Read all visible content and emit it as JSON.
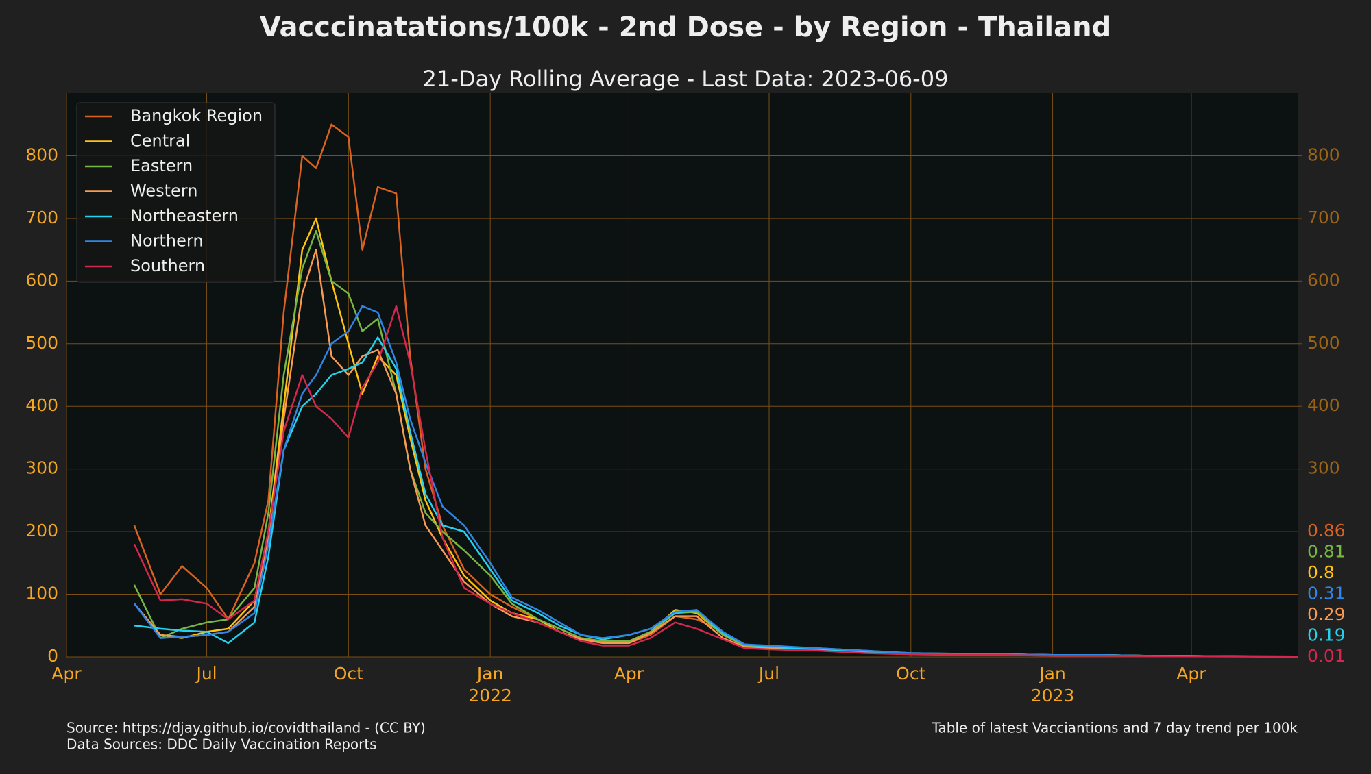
{
  "chart_data": {
    "type": "line",
    "title": "Vacccinatations/100k - 2nd Dose - by Region - Thailand",
    "subtitle": "21-Day Rolling Average - Last Data: 2023-06-09",
    "source": "Source: https://djay.github.io/covidthailand - (CC BY)",
    "data_sources": "Data Sources: DDC Daily Vaccination Reports",
    "table_note": "Table of latest Vacciantions and 7 day trend per 100k",
    "x": [
      "2021-05-15",
      "2021-06-01",
      "2021-06-15",
      "2021-07-01",
      "2021-07-15",
      "2021-08-01",
      "2021-08-10",
      "2021-08-20",
      "2021-09-01",
      "2021-09-10",
      "2021-09-20",
      "2021-10-01",
      "2021-10-10",
      "2021-10-20",
      "2021-11-01",
      "2021-11-10",
      "2021-11-20",
      "2021-12-01",
      "2021-12-15",
      "2022-01-01",
      "2022-01-15",
      "2022-02-01",
      "2022-02-15",
      "2022-03-01",
      "2022-03-15",
      "2022-04-01",
      "2022-04-15",
      "2022-05-01",
      "2022-05-15",
      "2022-06-01",
      "2022-06-15",
      "2022-07-01",
      "2022-08-01",
      "2022-09-01",
      "2022-10-01",
      "2022-11-01",
      "2022-12-01",
      "2023-01-01",
      "2023-02-01",
      "2023-03-01",
      "2023-04-01",
      "2023-05-01",
      "2023-06-09"
    ],
    "xlim": [
      "2021-04-01",
      "2023-06-09"
    ],
    "xticks": [
      {
        "value": "2021-04-01",
        "label": "Apr"
      },
      {
        "value": "2021-07-01",
        "label": "Jul"
      },
      {
        "value": "2021-10-01",
        "label": "Oct"
      },
      {
        "value": "2022-01-01",
        "label": "Jan",
        "year": "2022"
      },
      {
        "value": "2022-04-01",
        "label": "Apr"
      },
      {
        "value": "2022-07-01",
        "label": "Jul"
      },
      {
        "value": "2022-10-01",
        "label": "Oct"
      },
      {
        "value": "2023-01-01",
        "label": "Jan",
        "year": "2023"
      },
      {
        "value": "2023-04-01",
        "label": "Apr"
      }
    ],
    "ylim": [
      0,
      900
    ],
    "yticks": [
      0,
      100,
      200,
      300,
      400,
      500,
      600,
      700,
      800
    ],
    "y2lim": [
      0,
      900
    ],
    "y2ticks": [
      300,
      400,
      500,
      600,
      700,
      800
    ],
    "grid": true,
    "legend": "upper left",
    "series": [
      {
        "name": "Bangkok Region",
        "color": "#d9621f",
        "last_value": 0.86,
        "values": [
          210,
          100,
          145,
          110,
          60,
          150,
          250,
          550,
          800,
          780,
          850,
          830,
          650,
          750,
          740,
          480,
          300,
          210,
          140,
          100,
          80,
          60,
          45,
          30,
          25,
          22,
          35,
          65,
          60,
          40,
          20,
          15,
          12,
          8,
          5,
          4,
          4,
          3,
          3,
          2,
          1.5,
          1,
          0.86
        ]
      },
      {
        "name": "Central",
        "color": "#ffc20e",
        "last_value": 0.8,
        "values": [
          85,
          35,
          30,
          40,
          45,
          90,
          200,
          400,
          650,
          700,
          600,
          500,
          420,
          480,
          450,
          350,
          250,
          190,
          130,
          90,
          70,
          60,
          40,
          28,
          25,
          25,
          40,
          75,
          70,
          35,
          18,
          15,
          12,
          8,
          5,
          4,
          4,
          3,
          3,
          2,
          1.5,
          1,
          0.8
        ]
      },
      {
        "name": "Eastern",
        "color": "#77b843",
        "last_value": 0.81,
        "values": [
          115,
          30,
          45,
          55,
          60,
          110,
          230,
          450,
          620,
          680,
          600,
          580,
          520,
          540,
          420,
          300,
          230,
          200,
          170,
          130,
          85,
          60,
          45,
          30,
          25,
          25,
          40,
          70,
          72,
          35,
          18,
          17,
          14,
          10,
          6,
          5,
          4,
          3,
          3,
          2,
          1.5,
          1,
          0.81
        ]
      },
      {
        "name": "Western",
        "color": "#f79a52",
        "last_value": 0.29,
        "values": [
          85,
          35,
          32,
          35,
          40,
          80,
          190,
          380,
          580,
          650,
          480,
          450,
          480,
          490,
          420,
          300,
          210,
          170,
          120,
          85,
          65,
          55,
          40,
          28,
          22,
          22,
          38,
          65,
          65,
          30,
          16,
          14,
          12,
          8,
          5,
          4,
          4,
          3,
          3,
          2,
          1.5,
          1,
          0.29
        ]
      },
      {
        "name": "Northeastern",
        "color": "#22d3f0",
        "last_value": 0.19,
        "values": [
          50,
          45,
          42,
          40,
          22,
          55,
          160,
          330,
          400,
          420,
          450,
          460,
          470,
          510,
          460,
          360,
          260,
          210,
          200,
          140,
          90,
          70,
          50,
          35,
          28,
          35,
          45,
          70,
          75,
          38,
          20,
          16,
          12,
          8,
          5,
          4,
          4,
          3,
          3,
          2,
          1.5,
          1,
          0.19
        ]
      },
      {
        "name": "Northern",
        "color": "#2f86e6",
        "last_value": 0.31,
        "values": [
          85,
          30,
          32,
          35,
          40,
          70,
          180,
          330,
          420,
          450,
          500,
          520,
          560,
          550,
          470,
          380,
          310,
          240,
          210,
          150,
          95,
          75,
          55,
          35,
          30,
          35,
          45,
          72,
          75,
          40,
          20,
          18,
          14,
          10,
          6,
          5,
          4,
          3,
          3,
          2,
          1.5,
          1,
          0.31
        ]
      },
      {
        "name": "Southern",
        "color": "#d4264f",
        "last_value": 0.01,
        "values": [
          180,
          90,
          92,
          85,
          60,
          90,
          200,
          360,
          450,
          400,
          380,
          350,
          430,
          470,
          560,
          470,
          330,
          190,
          110,
          85,
          70,
          55,
          40,
          25,
          18,
          18,
          30,
          55,
          45,
          28,
          14,
          12,
          10,
          6,
          4,
          3,
          3,
          2,
          2,
          1.5,
          1,
          0.5,
          0.01
        ]
      }
    ]
  }
}
